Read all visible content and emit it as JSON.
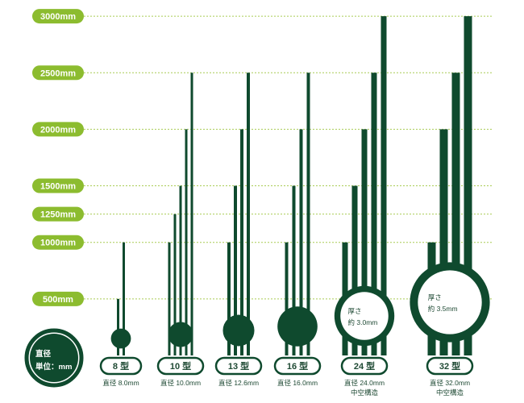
{
  "colors": {
    "bar": "#0f4a2e",
    "axis_label_bg": "#8cbc2f",
    "gridline": "#a9cc55",
    "text_dark": "#1f4a34",
    "pill_border": "#0f4a2e"
  },
  "legend": {
    "line1": "直径",
    "line2": "単位：mm"
  },
  "chart_data": {
    "type": "bar",
    "y_unit": "mm",
    "ylim": [
      0,
      3000
    ],
    "y_ticks": [
      {
        "value": 500,
        "label": "500mm"
      },
      {
        "value": 1000,
        "label": "1000mm"
      },
      {
        "value": 1250,
        "label": "1250mm"
      },
      {
        "value": 1500,
        "label": "1500mm"
      },
      {
        "value": 2000,
        "label": "2000mm"
      },
      {
        "value": 2500,
        "label": "2500mm"
      },
      {
        "value": 3000,
        "label": "3000mm"
      }
    ],
    "grid": true,
    "groups": [
      {
        "label": "8 型",
        "diameter": 8.0,
        "diameter_text": "直径 8.0mm",
        "hollow_text": "",
        "inner_line1": "",
        "inner_line2": "",
        "hollow": false,
        "lengths": [
          500,
          1000
        ]
      },
      {
        "label": "10 型",
        "diameter": 10.0,
        "diameter_text": "直径 10.0mm",
        "hollow_text": "",
        "inner_line1": "",
        "inner_line2": "",
        "hollow": false,
        "lengths": [
          1000,
          1250,
          1500,
          2000,
          2500
        ]
      },
      {
        "label": "13 型",
        "diameter": 12.6,
        "diameter_text": "直径 12.6mm",
        "hollow_text": "",
        "inner_line1": "",
        "inner_line2": "",
        "hollow": false,
        "lengths": [
          1000,
          1500,
          2000,
          2500
        ]
      },
      {
        "label": "16 型",
        "diameter": 16.0,
        "diameter_text": "直径 16.0mm",
        "hollow_text": "",
        "inner_line1": "",
        "inner_line2": "",
        "hollow": false,
        "lengths": [
          1000,
          1500,
          2000,
          2500
        ]
      },
      {
        "label": "24 型",
        "diameter": 24.0,
        "diameter_text": "直径 24.0mm",
        "hollow_text": "中空構造",
        "inner_line1": "厚さ",
        "inner_line2": "約 3.0mm",
        "hollow": true,
        "lengths": [
          1000,
          1500,
          2000,
          2500,
          3000
        ]
      },
      {
        "label": "32 型",
        "diameter": 32.0,
        "diameter_text": "直径 32.0mm",
        "hollow_text": "中空構造",
        "inner_line1": "厚さ",
        "inner_line2": "約 3.5mm",
        "hollow": true,
        "lengths": [
          1000,
          2000,
          2500,
          3000
        ]
      }
    ]
  }
}
